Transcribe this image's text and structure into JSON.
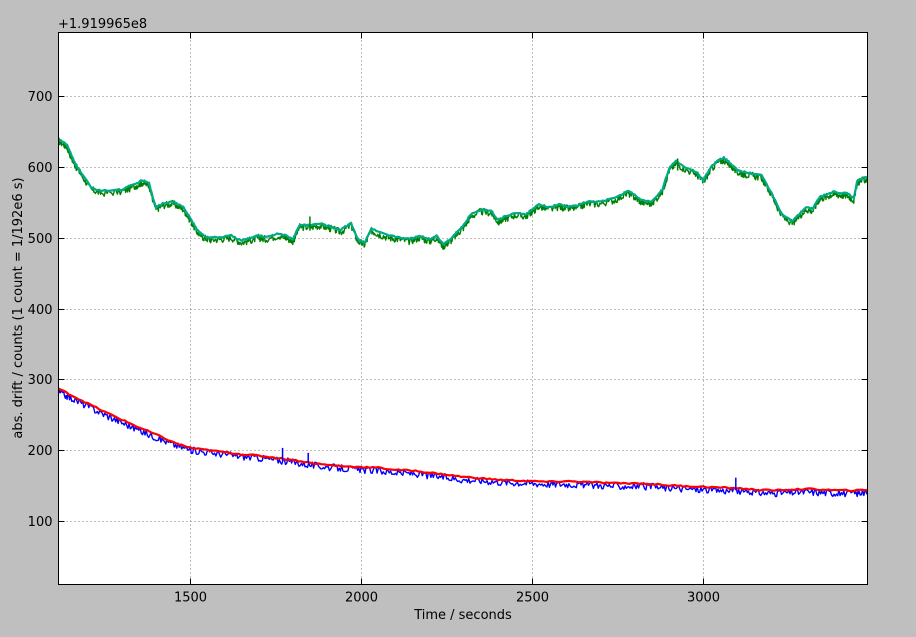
{
  "chart_data": {
    "type": "line",
    "xlabel": "Time / seconds",
    "ylabel": "abs. drift / counts (1 count = 1/192e6 s)",
    "offset_text": "+1.919965e8",
    "xlim": [
      1115,
      3480
    ],
    "ylim": [
      10,
      790
    ],
    "grid": true,
    "x_ticks": [
      1500,
      2000,
      2500,
      3000
    ],
    "y_ticks": [
      100,
      200,
      300,
      400,
      500,
      600,
      700
    ],
    "x_tick_labels": [
      "1500",
      "2000",
      "2500",
      "3000"
    ],
    "y_tick_labels": [
      "100",
      "200",
      "300",
      "400",
      "500",
      "600",
      "700"
    ],
    "series": [
      {
        "color": "#008000",
        "style": "noisy",
        "x": [
          1115,
          1140,
          1160,
          1180,
          1210,
          1240,
          1300,
          1340,
          1360,
          1380,
          1390,
          1400,
          1420,
          1450,
          1480,
          1500,
          1520,
          1540,
          1560,
          1590,
          1620,
          1650,
          1680,
          1700,
          1720,
          1760,
          1780,
          1800,
          1820,
          1850,
          1880,
          1910,
          1940,
          1970,
          1990,
          2010,
          2030,
          2050,
          2080,
          2110,
          2140,
          2170,
          2200,
          2220,
          2240,
          2260,
          2280,
          2300,
          2320,
          2350,
          2380,
          2400,
          2420,
          2450,
          2480,
          2500,
          2520,
          2550,
          2580,
          2600,
          2630,
          2660,
          2700,
          2740,
          2780,
          2800,
          2820,
          2850,
          2880,
          2900,
          2920,
          2950,
          2980,
          3000,
          3020,
          3040,
          3060,
          3080,
          3100,
          3120,
          3140,
          3170,
          3200,
          3230,
          3260,
          3280,
          3300,
          3320,
          3340,
          3360,
          3380,
          3400,
          3420,
          3440,
          3450,
          3460,
          3480
        ],
        "y": [
          637,
          628,
          605,
          590,
          568,
          563,
          565,
          573,
          578,
          574,
          555,
          540,
          546,
          548,
          540,
          525,
          508,
          500,
          497,
          498,
          500,
          493,
          497,
          500,
          498,
          503,
          500,
          495,
          515,
          515,
          517,
          513,
          508,
          518,
          495,
          490,
          510,
          505,
          500,
          498,
          495,
          500,
          495,
          500,
          488,
          495,
          505,
          515,
          530,
          537,
          535,
          522,
          527,
          532,
          530,
          537,
          544,
          540,
          544,
          541,
          542,
          548,
          548,
          553,
          563,
          557,
          550,
          548,
          565,
          595,
          605,
          596,
          590,
          578,
          595,
          606,
          610,
          602,
          592,
          590,
          588,
          585,
          560,
          530,
          520,
          530,
          540,
          538,
          555,
          558,
          562,
          560,
          560,
          553,
          578,
          580,
          583
        ]
      },
      {
        "color": "#00aa88",
        "style": "smooth",
        "x": [
          1115,
          1140,
          1160,
          1180,
          1210,
          1240,
          1300,
          1340,
          1360,
          1380,
          1390,
          1400,
          1420,
          1450,
          1480,
          1500,
          1520,
          1540,
          1560,
          1590,
          1620,
          1650,
          1680,
          1700,
          1720,
          1760,
          1780,
          1800,
          1820,
          1850,
          1880,
          1910,
          1940,
          1970,
          1990,
          2010,
          2030,
          2050,
          2080,
          2110,
          2140,
          2170,
          2200,
          2220,
          2240,
          2260,
          2280,
          2300,
          2320,
          2350,
          2380,
          2400,
          2420,
          2450,
          2480,
          2500,
          2520,
          2550,
          2580,
          2600,
          2630,
          2660,
          2700,
          2740,
          2780,
          2800,
          2820,
          2850,
          2880,
          2900,
          2920,
          2950,
          2980,
          3000,
          3020,
          3040,
          3060,
          3080,
          3100,
          3120,
          3140,
          3170,
          3200,
          3230,
          3260,
          3280,
          3300,
          3320,
          3340,
          3360,
          3380,
          3400,
          3420,
          3440,
          3450,
          3460,
          3480
        ],
        "y": [
          640,
          631,
          608,
          593,
          571,
          566,
          568,
          576,
          581,
          577,
          558,
          543,
          549,
          551,
          543,
          528,
          511,
          503,
          500,
          501,
          503,
          496,
          500,
          503,
          501,
          506,
          503,
          498,
          518,
          518,
          520,
          516,
          511,
          521,
          498,
          493,
          513,
          508,
          503,
          501,
          498,
          503,
          498,
          503,
          491,
          498,
          508,
          518,
          533,
          540,
          538,
          525,
          530,
          535,
          533,
          540,
          547,
          543,
          547,
          544,
          545,
          551,
          551,
          556,
          566,
          560,
          553,
          551,
          568,
          598,
          608,
          599,
          593,
          581,
          598,
          609,
          613,
          605,
          595,
          593,
          591,
          588,
          563,
          533,
          523,
          533,
          543,
          541,
          558,
          561,
          565,
          563,
          563,
          556,
          581,
          583,
          586
        ]
      },
      {
        "color": "#0000ff",
        "style": "noisy",
        "x": [
          1115,
          1150,
          1200,
          1250,
          1300,
          1350,
          1400,
          1450,
          1500,
          1550,
          1600,
          1650,
          1700,
          1750,
          1800,
          1850,
          1900,
          1950,
          2000,
          2050,
          2100,
          2150,
          2200,
          2250,
          2300,
          2350,
          2400,
          2450,
          2500,
          2550,
          2600,
          2650,
          2700,
          2750,
          2800,
          2850,
          2900,
          2950,
          3000,
          3050,
          3100,
          3150,
          3200,
          3250,
          3300,
          3350,
          3400,
          3450,
          3480
        ],
        "y": [
          282,
          274,
          262,
          250,
          239,
          228,
          218,
          208,
          200,
          197,
          194,
          191,
          189,
          186,
          183,
          179,
          176,
          174,
          172,
          171,
          168,
          167,
          164,
          161,
          158,
          157,
          155,
          154,
          153,
          152,
          152,
          151,
          150,
          149,
          149,
          148,
          146,
          145,
          144,
          143,
          142,
          140,
          139,
          140,
          141,
          140,
          139,
          139,
          140
        ]
      },
      {
        "color": "#ff0000",
        "style": "smooth",
        "x": [
          1115,
          1150,
          1200,
          1250,
          1300,
          1350,
          1400,
          1450,
          1500,
          1550,
          1600,
          1650,
          1700,
          1750,
          1800,
          1850,
          1900,
          1950,
          2000,
          2050,
          2100,
          2150,
          2200,
          2250,
          2300,
          2350,
          2400,
          2450,
          2500,
          2550,
          2600,
          2650,
          2700,
          2750,
          2800,
          2850,
          2900,
          2950,
          3000,
          3050,
          3100,
          3150,
          3200,
          3250,
          3300,
          3350,
          3400,
          3450,
          3480
        ],
        "y": [
          287,
          278,
          266,
          254,
          243,
          232,
          222,
          211,
          203,
          200,
          197,
          194,
          192,
          189,
          186,
          182,
          179,
          177,
          176,
          175,
          172,
          171,
          168,
          165,
          162,
          160,
          158,
          157,
          156,
          155,
          156,
          155,
          154,
          153,
          153,
          152,
          150,
          149,
          148,
          147,
          146,
          144,
          143,
          144,
          145,
          144,
          143,
          143,
          144
        ]
      }
    ],
    "spikes": [
      {
        "color": "#0000ff",
        "x": 1770,
        "y_low": 185,
        "y_high": 203
      },
      {
        "color": "#0000ff",
        "x": 1845,
        "y_low": 182,
        "y_high": 196
      },
      {
        "color": "#0000ff",
        "x": 3095,
        "y_low": 143,
        "y_high": 161
      },
      {
        "color": "#008000",
        "x": 1850,
        "y_low": 510,
        "y_high": 530
      },
      {
        "color": "#008000",
        "x": 2925,
        "y_low": 595,
        "y_high": 612
      }
    ]
  }
}
